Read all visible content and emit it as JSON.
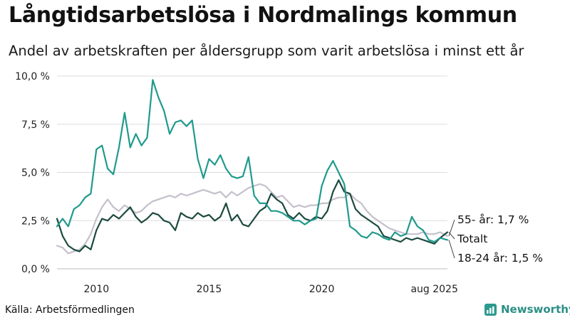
{
  "header": {
    "title": "Långtidsarbetslösa i Nordmalings kommun",
    "subtitle": "Andel av arbetskraften per åldersgrupp som varit arbetslösa i minst ett år"
  },
  "footer": {
    "source": "Källa: Arbetsförmedlingen",
    "brand": "Newsworthy"
  },
  "colors": {
    "youth": "#1f9a8c",
    "total": "#1c4a3f",
    "senior": "#c5c0cc",
    "grid": "#dddddd"
  },
  "chart_data": {
    "type": "line",
    "title": "Långtidsarbetslösa i Nordmalings kommun",
    "xlabel": "",
    "ylabel": "",
    "ylim": [
      0,
      10
    ],
    "xlim": [
      2008.25,
      2025.58
    ],
    "yticks": [
      {
        "value": 0,
        "label": "0,0 %"
      },
      {
        "value": 2.5,
        "label": "2,5 %"
      },
      {
        "value": 5,
        "label": "5,0 %"
      },
      {
        "value": 7.5,
        "label": "7,5 %"
      },
      {
        "value": 10,
        "label": "10,0 %"
      }
    ],
    "xticks": [
      {
        "value": 2010,
        "label": "2010"
      },
      {
        "value": 2015,
        "label": "2015"
      },
      {
        "value": 2020,
        "label": "2020"
      },
      {
        "value": 2025,
        "label": "aug 2025"
      }
    ],
    "series": [
      {
        "name": "55- år",
        "end_label": "55- år: 1,7 %",
        "color": "#c5c0cc",
        "x": [
          2008.25,
          2008.5,
          2008.75,
          2009.0,
          2009.25,
          2009.5,
          2009.75,
          2010.0,
          2010.25,
          2010.5,
          2010.75,
          2011.0,
          2011.25,
          2011.5,
          2011.75,
          2012.0,
          2012.25,
          2012.5,
          2012.75,
          2013.0,
          2013.25,
          2013.5,
          2013.75,
          2014.0,
          2014.25,
          2014.5,
          2014.75,
          2015.0,
          2015.25,
          2015.5,
          2015.75,
          2016.0,
          2016.25,
          2016.5,
          2016.75,
          2017.0,
          2017.25,
          2017.5,
          2017.75,
          2018.0,
          2018.25,
          2018.5,
          2018.75,
          2019.0,
          2019.25,
          2019.5,
          2019.75,
          2020.0,
          2020.25,
          2020.5,
          2020.75,
          2021.0,
          2021.25,
          2021.5,
          2021.75,
          2022.0,
          2022.25,
          2022.5,
          2022.75,
          2023.0,
          2023.25,
          2023.5,
          2023.75,
          2024.0,
          2024.25,
          2024.5,
          2024.75,
          2025.0,
          2025.25,
          2025.58
        ],
        "values": [
          1.2,
          1.1,
          0.8,
          0.9,
          1.0,
          1.3,
          1.8,
          2.6,
          3.2,
          3.6,
          3.2,
          3.0,
          3.3,
          3.1,
          2.9,
          3.0,
          3.3,
          3.5,
          3.6,
          3.7,
          3.8,
          3.7,
          3.9,
          3.8,
          3.9,
          4.0,
          4.1,
          4.0,
          3.9,
          4.0,
          3.7,
          4.0,
          3.8,
          4.0,
          4.2,
          4.3,
          4.4,
          4.3,
          4.0,
          3.7,
          3.8,
          3.5,
          3.2,
          3.3,
          3.2,
          3.3,
          3.3,
          3.4,
          3.4,
          3.6,
          3.7,
          3.7,
          3.9,
          3.6,
          3.4,
          3.0,
          2.7,
          2.5,
          2.3,
          2.1,
          2.0,
          1.9,
          1.8,
          1.8,
          1.8,
          1.9,
          1.8,
          1.8,
          1.9,
          1.7
        ]
      },
      {
        "name": "Totalt",
        "end_label": "Totalt",
        "color": "#1c4a3f",
        "x": [
          2008.25,
          2008.5,
          2008.75,
          2009.0,
          2009.25,
          2009.5,
          2009.75,
          2010.0,
          2010.25,
          2010.5,
          2010.75,
          2011.0,
          2011.25,
          2011.5,
          2011.75,
          2012.0,
          2012.25,
          2012.5,
          2012.75,
          2013.0,
          2013.25,
          2013.5,
          2013.75,
          2014.0,
          2014.25,
          2014.5,
          2014.75,
          2015.0,
          2015.25,
          2015.5,
          2015.75,
          2016.0,
          2016.25,
          2016.5,
          2016.75,
          2017.0,
          2017.25,
          2017.5,
          2017.75,
          2018.0,
          2018.25,
          2018.5,
          2018.75,
          2019.0,
          2019.25,
          2019.5,
          2019.75,
          2020.0,
          2020.25,
          2020.5,
          2020.75,
          2021.0,
          2021.25,
          2021.5,
          2021.75,
          2022.0,
          2022.25,
          2022.5,
          2022.75,
          2023.0,
          2023.25,
          2023.5,
          2023.75,
          2024.0,
          2024.25,
          2024.5,
          2024.75,
          2025.0,
          2025.25,
          2025.58
        ],
        "values": [
          2.6,
          1.7,
          1.2,
          1.0,
          0.9,
          1.2,
          1.0,
          2.0,
          2.6,
          2.5,
          2.8,
          2.6,
          2.9,
          3.2,
          2.7,
          2.4,
          2.6,
          2.9,
          2.8,
          2.5,
          2.4,
          2.0,
          2.9,
          2.7,
          2.6,
          2.9,
          2.7,
          2.8,
          2.5,
          2.7,
          3.4,
          2.5,
          2.8,
          2.3,
          2.2,
          2.6,
          3.0,
          3.2,
          3.9,
          3.6,
          3.4,
          2.8,
          2.6,
          2.9,
          2.6,
          2.5,
          2.7,
          2.6,
          3.0,
          4.0,
          4.6,
          4.0,
          3.9,
          3.1,
          2.8,
          2.6,
          2.4,
          2.2,
          1.7,
          1.6,
          1.5,
          1.4,
          1.6,
          1.5,
          1.6,
          1.5,
          1.4,
          1.3,
          1.6,
          1.9
        ]
      },
      {
        "name": "18-24 år",
        "end_label": "18-24 år: 1,5 %",
        "color": "#1f9a8c",
        "x": [
          2008.25,
          2008.5,
          2008.75,
          2009.0,
          2009.25,
          2009.5,
          2009.75,
          2010.0,
          2010.25,
          2010.5,
          2010.75,
          2011.0,
          2011.25,
          2011.5,
          2011.75,
          2012.0,
          2012.25,
          2012.5,
          2012.75,
          2013.0,
          2013.25,
          2013.5,
          2013.75,
          2014.0,
          2014.25,
          2014.5,
          2014.75,
          2015.0,
          2015.25,
          2015.5,
          2015.75,
          2016.0,
          2016.25,
          2016.5,
          2016.75,
          2017.0,
          2017.25,
          2017.5,
          2017.75,
          2018.0,
          2018.25,
          2018.5,
          2018.75,
          2019.0,
          2019.25,
          2019.5,
          2019.75,
          2020.0,
          2020.25,
          2020.5,
          2020.75,
          2021.0,
          2021.25,
          2021.5,
          2021.75,
          2022.0,
          2022.25,
          2022.5,
          2022.75,
          2023.0,
          2023.25,
          2023.5,
          2023.75,
          2024.0,
          2024.25,
          2024.5,
          2024.75,
          2025.0,
          2025.25,
          2025.58
        ],
        "values": [
          2.2,
          2.6,
          2.2,
          3.1,
          3.3,
          3.7,
          3.9,
          6.2,
          6.4,
          5.2,
          4.9,
          6.3,
          8.1,
          6.3,
          7.0,
          6.4,
          6.8,
          9.8,
          8.9,
          8.2,
          7.0,
          7.6,
          7.7,
          7.4,
          7.7,
          5.7,
          4.7,
          5.7,
          5.4,
          5.9,
          5.2,
          4.8,
          4.7,
          4.8,
          5.8,
          3.8,
          3.4,
          3.4,
          3.0,
          3.0,
          2.9,
          2.7,
          2.5,
          2.5,
          2.3,
          2.5,
          2.6,
          4.3,
          5.1,
          5.6,
          5.0,
          4.4,
          2.2,
          2.0,
          1.7,
          1.6,
          1.9,
          1.8,
          1.6,
          1.5,
          1.9,
          1.7,
          1.8,
          2.7,
          2.2,
          2.0,
          1.5,
          1.4,
          1.6,
          1.5
        ]
      }
    ]
  }
}
